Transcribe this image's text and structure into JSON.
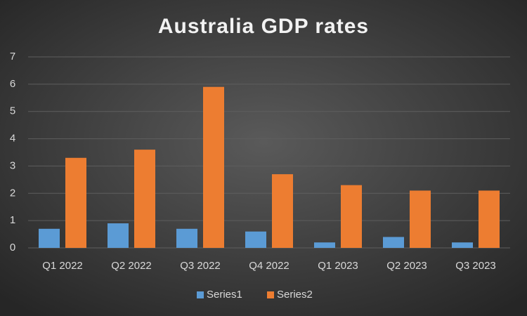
{
  "chart_data": {
    "type": "bar",
    "title": "Australia GDP rates",
    "categories": [
      "Q1 2022",
      "Q2 2022",
      "Q3 2022",
      "Q4 2022",
      "Q1 2023",
      "Q2 2023",
      "Q3 2023"
    ],
    "series": [
      {
        "name": "Series1",
        "color": "#5b9bd5",
        "values": [
          0.7,
          0.9,
          0.7,
          0.6,
          0.2,
          0.4,
          0.2
        ]
      },
      {
        "name": "Series2",
        "color": "#ed7d31",
        "values": [
          3.3,
          3.6,
          5.9,
          2.7,
          2.3,
          2.1,
          2.1
        ]
      }
    ],
    "ylim": [
      0,
      7
    ],
    "yticks": [
      0,
      1,
      2,
      3,
      4,
      5,
      6,
      7
    ],
    "grid": true,
    "legend": "bottom"
  }
}
